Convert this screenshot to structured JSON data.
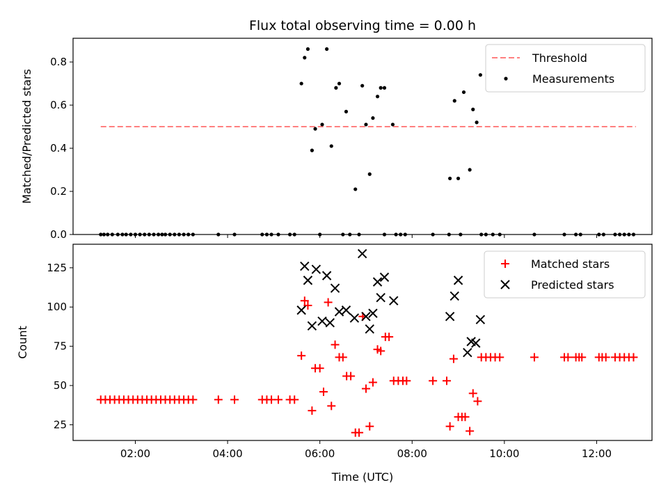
{
  "chart_data": [
    {
      "type": "scatter",
      "title": "Flux total observing time = 0.00 h",
      "xlabel": "",
      "ylabel": "Matched/Predicted stars",
      "xlim": [
        0.65,
        13.2
      ],
      "ylim": [
        0,
        0.91
      ],
      "yticks": [
        0,
        0.2,
        0.4,
        0.6,
        0.8
      ],
      "ytick_labels": [
        "0.0",
        "0.2",
        "0.4",
        "0.6",
        "0.8"
      ],
      "legend_position": "top-right",
      "threshold": {
        "name": "Threshold",
        "value": 0.5,
        "x": [
          1.25,
          12.85
        ],
        "color": "#ff7f7f"
      },
      "series": [
        {
          "name": "Measurements",
          "color": "#000000",
          "marker": "dot",
          "points": [
            [
              1.25,
              0
            ],
            [
              1.32,
              0
            ],
            [
              1.4,
              0
            ],
            [
              1.5,
              0
            ],
            [
              1.62,
              0
            ],
            [
              1.72,
              0
            ],
            [
              1.8,
              0
            ],
            [
              1.9,
              0
            ],
            [
              2.0,
              0
            ],
            [
              2.1,
              0
            ],
            [
              2.2,
              0
            ],
            [
              2.3,
              0
            ],
            [
              2.4,
              0
            ],
            [
              2.5,
              0
            ],
            [
              2.58,
              0
            ],
            [
              2.65,
              0
            ],
            [
              2.75,
              0
            ],
            [
              2.85,
              0
            ],
            [
              2.95,
              0
            ],
            [
              3.05,
              0
            ],
            [
              3.15,
              0
            ],
            [
              3.25,
              0
            ],
            [
              3.8,
              0
            ],
            [
              4.15,
              0
            ],
            [
              4.75,
              0
            ],
            [
              4.85,
              0
            ],
            [
              4.95,
              0
            ],
            [
              5.1,
              0
            ],
            [
              5.35,
              0
            ],
            [
              5.45,
              0
            ],
            [
              6.0,
              0
            ],
            [
              6.5,
              0
            ],
            [
              6.65,
              0
            ],
            [
              6.85,
              0
            ],
            [
              7.4,
              0
            ],
            [
              7.65,
              0
            ],
            [
              7.75,
              0
            ],
            [
              7.85,
              0
            ],
            [
              8.45,
              0
            ],
            [
              8.8,
              0
            ],
            [
              9.05,
              0
            ],
            [
              9.5,
              0
            ],
            [
              9.6,
              0
            ],
            [
              9.75,
              0
            ],
            [
              9.9,
              0
            ],
            [
              10.65,
              0
            ],
            [
              11.3,
              0
            ],
            [
              11.55,
              0
            ],
            [
              11.65,
              0
            ],
            [
              12.05,
              0
            ],
            [
              12.15,
              0
            ],
            [
              12.4,
              0
            ],
            [
              12.5,
              0
            ],
            [
              12.6,
              0
            ],
            [
              12.7,
              0
            ],
            [
              12.8,
              0
            ],
            [
              5.6,
              0.7
            ],
            [
              5.67,
              0.82
            ],
            [
              5.74,
              0.86
            ],
            [
              5.83,
              0.39
            ],
            [
              5.9,
              0.49
            ],
            [
              6.05,
              0.51
            ],
            [
              6.15,
              0.86
            ],
            [
              6.25,
              0.41
            ],
            [
              6.35,
              0.68
            ],
            [
              6.42,
              0.7
            ],
            [
              6.57,
              0.57
            ],
            [
              6.77,
              0.21
            ],
            [
              6.92,
              0.69
            ],
            [
              7.0,
              0.51
            ],
            [
              7.08,
              0.28
            ],
            [
              7.15,
              0.54
            ],
            [
              7.25,
              0.64
            ],
            [
              7.32,
              0.68
            ],
            [
              7.4,
              0.68
            ],
            [
              7.58,
              0.51
            ],
            [
              8.82,
              0.26
            ],
            [
              8.92,
              0.62
            ],
            [
              9.0,
              0.26
            ],
            [
              9.12,
              0.66
            ],
            [
              9.25,
              0.3
            ],
            [
              9.32,
              0.58
            ],
            [
              9.4,
              0.52
            ],
            [
              9.48,
              0.74
            ]
          ]
        }
      ]
    },
    {
      "type": "scatter",
      "title": "",
      "xlabel": "Time (UTC)",
      "ylabel": "Count",
      "xlim": [
        0.65,
        13.2
      ],
      "ylim": [
        15,
        140
      ],
      "yticks": [
        25,
        50,
        75,
        100,
        125
      ],
      "ytick_labels": [
        "25",
        "50",
        "75",
        "100",
        "125"
      ],
      "xticks": [
        2,
        4,
        6,
        8,
        10,
        12
      ],
      "xtick_labels": [
        "02:00",
        "04:00",
        "06:00",
        "08:00",
        "10:00",
        "12:00"
      ],
      "legend_position": "top-right",
      "series": [
        {
          "name": "Matched stars",
          "color": "#ff0000",
          "marker": "plus",
          "points": [
            [
              1.25,
              41
            ],
            [
              1.35,
              41
            ],
            [
              1.45,
              41
            ],
            [
              1.55,
              41
            ],
            [
              1.65,
              41
            ],
            [
              1.75,
              41
            ],
            [
              1.85,
              41
            ],
            [
              1.95,
              41
            ],
            [
              2.05,
              41
            ],
            [
              2.15,
              41
            ],
            [
              2.25,
              41
            ],
            [
              2.35,
              41
            ],
            [
              2.45,
              41
            ],
            [
              2.55,
              41
            ],
            [
              2.65,
              41
            ],
            [
              2.75,
              41
            ],
            [
              2.85,
              41
            ],
            [
              2.95,
              41
            ],
            [
              3.05,
              41
            ],
            [
              3.15,
              41
            ],
            [
              3.25,
              41
            ],
            [
              3.8,
              41
            ],
            [
              4.15,
              41
            ],
            [
              4.75,
              41
            ],
            [
              4.85,
              41
            ],
            [
              4.95,
              41
            ],
            [
              5.1,
              41
            ],
            [
              5.35,
              41
            ],
            [
              5.45,
              41
            ],
            [
              5.6,
              69
            ],
            [
              5.67,
              104
            ],
            [
              5.74,
              101
            ],
            [
              5.83,
              34
            ],
            [
              5.9,
              61
            ],
            [
              6.0,
              61
            ],
            [
              6.08,
              46
            ],
            [
              6.18,
              103
            ],
            [
              6.25,
              37
            ],
            [
              6.33,
              76
            ],
            [
              6.42,
              68
            ],
            [
              6.5,
              68
            ],
            [
              6.58,
              56
            ],
            [
              6.67,
              56
            ],
            [
              6.77,
              20
            ],
            [
              6.85,
              20
            ],
            [
              6.93,
              94
            ],
            [
              7.0,
              48
            ],
            [
              7.08,
              24
            ],
            [
              7.15,
              52
            ],
            [
              7.25,
              73
            ],
            [
              7.32,
              72
            ],
            [
              7.42,
              81
            ],
            [
              7.5,
              81
            ],
            [
              7.6,
              53
            ],
            [
              7.7,
              53
            ],
            [
              7.8,
              53
            ],
            [
              7.88,
              53
            ],
            [
              8.45,
              53
            ],
            [
              8.75,
              53
            ],
            [
              8.82,
              24
            ],
            [
              8.9,
              67
            ],
            [
              9.0,
              30
            ],
            [
              9.08,
              30
            ],
            [
              9.15,
              30
            ],
            [
              9.25,
              21
            ],
            [
              9.32,
              45
            ],
            [
              9.42,
              40
            ],
            [
              9.5,
              68
            ],
            [
              9.6,
              68
            ],
            [
              9.7,
              68
            ],
            [
              9.8,
              68
            ],
            [
              9.9,
              68
            ],
            [
              10.65,
              68
            ],
            [
              11.3,
              68
            ],
            [
              11.38,
              68
            ],
            [
              11.55,
              68
            ],
            [
              11.62,
              68
            ],
            [
              11.68,
              68
            ],
            [
              12.05,
              68
            ],
            [
              12.12,
              68
            ],
            [
              12.2,
              68
            ],
            [
              12.4,
              68
            ],
            [
              12.5,
              68
            ],
            [
              12.6,
              68
            ],
            [
              12.7,
              68
            ],
            [
              12.8,
              68
            ]
          ]
        },
        {
          "name": "Predicted stars",
          "color": "#000000",
          "marker": "x",
          "points": [
            [
              5.6,
              98
            ],
            [
              5.67,
              126
            ],
            [
              5.74,
              117
            ],
            [
              5.83,
              88
            ],
            [
              5.92,
              124
            ],
            [
              6.05,
              91
            ],
            [
              6.15,
              120
            ],
            [
              6.22,
              90
            ],
            [
              6.33,
              112
            ],
            [
              6.42,
              97
            ],
            [
              6.57,
              98
            ],
            [
              6.75,
              93
            ],
            [
              6.92,
              134
            ],
            [
              7.0,
              94
            ],
            [
              7.08,
              86
            ],
            [
              7.15,
              96
            ],
            [
              7.25,
              116
            ],
            [
              7.32,
              106
            ],
            [
              7.4,
              119
            ],
            [
              7.6,
              104
            ],
            [
              8.82,
              94
            ],
            [
              8.92,
              107
            ],
            [
              9.0,
              117
            ],
            [
              9.2,
              71
            ],
            [
              9.28,
              78
            ],
            [
              9.38,
              77
            ],
            [
              9.48,
              92
            ]
          ]
        }
      ]
    }
  ]
}
